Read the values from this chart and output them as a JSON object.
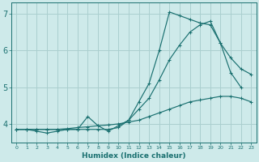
{
  "xlabel": "Humidex (Indice chaleur)",
  "xlim": [
    -0.5,
    23.5
  ],
  "ylim": [
    3.5,
    7.3
  ],
  "yticks": [
    4,
    5,
    6,
    7
  ],
  "xticks": [
    0,
    1,
    2,
    3,
    4,
    5,
    6,
    7,
    8,
    9,
    10,
    11,
    12,
    13,
    14,
    15,
    16,
    17,
    18,
    19,
    20,
    21,
    22,
    23
  ],
  "bg_color": "#ceeaea",
  "grid_color": "#aacfcf",
  "line_color": "#1a7070",
  "lines": [
    {
      "x": [
        0,
        1,
        2,
        3,
        4,
        5,
        6,
        7,
        8,
        9,
        10,
        11,
        12,
        13,
        14,
        15,
        16,
        17,
        18,
        19,
        20,
        21,
        22,
        23
      ],
      "y": [
        3.85,
        3.85,
        3.85,
        3.85,
        3.85,
        3.87,
        3.9,
        3.92,
        3.95,
        3.97,
        4.0,
        4.05,
        4.1,
        4.2,
        4.3,
        4.4,
        4.5,
        4.6,
        4.65,
        4.7,
        4.75,
        4.75,
        4.7,
        4.6
      ]
    },
    {
      "x": [
        0,
        1,
        2,
        3,
        4,
        5,
        6,
        7,
        8,
        9,
        10,
        11,
        12,
        13,
        14,
        15,
        16,
        17,
        18,
        19,
        20,
        21,
        22,
        23
      ],
      "y": [
        3.85,
        3.85,
        3.85,
        3.85,
        3.85,
        3.85,
        3.85,
        3.85,
        3.85,
        3.85,
        3.9,
        4.1,
        4.4,
        4.7,
        5.2,
        5.75,
        6.15,
        6.5,
        6.7,
        6.8,
        6.2,
        5.8,
        5.5,
        5.35
      ]
    },
    {
      "x": [
        0,
        1,
        2,
        3,
        4,
        5,
        6,
        7,
        8,
        9,
        10,
        11,
        12,
        13,
        14,
        15,
        16,
        17,
        18,
        19,
        20,
        21,
        22
      ],
      "y": [
        3.85,
        3.85,
        3.8,
        3.75,
        3.8,
        3.85,
        3.85,
        4.2,
        3.95,
        3.8,
        3.95,
        4.1,
        4.6,
        5.1,
        6.0,
        7.05,
        6.95,
        6.85,
        6.75,
        6.7,
        6.2,
        5.4,
        5.0
      ]
    }
  ]
}
